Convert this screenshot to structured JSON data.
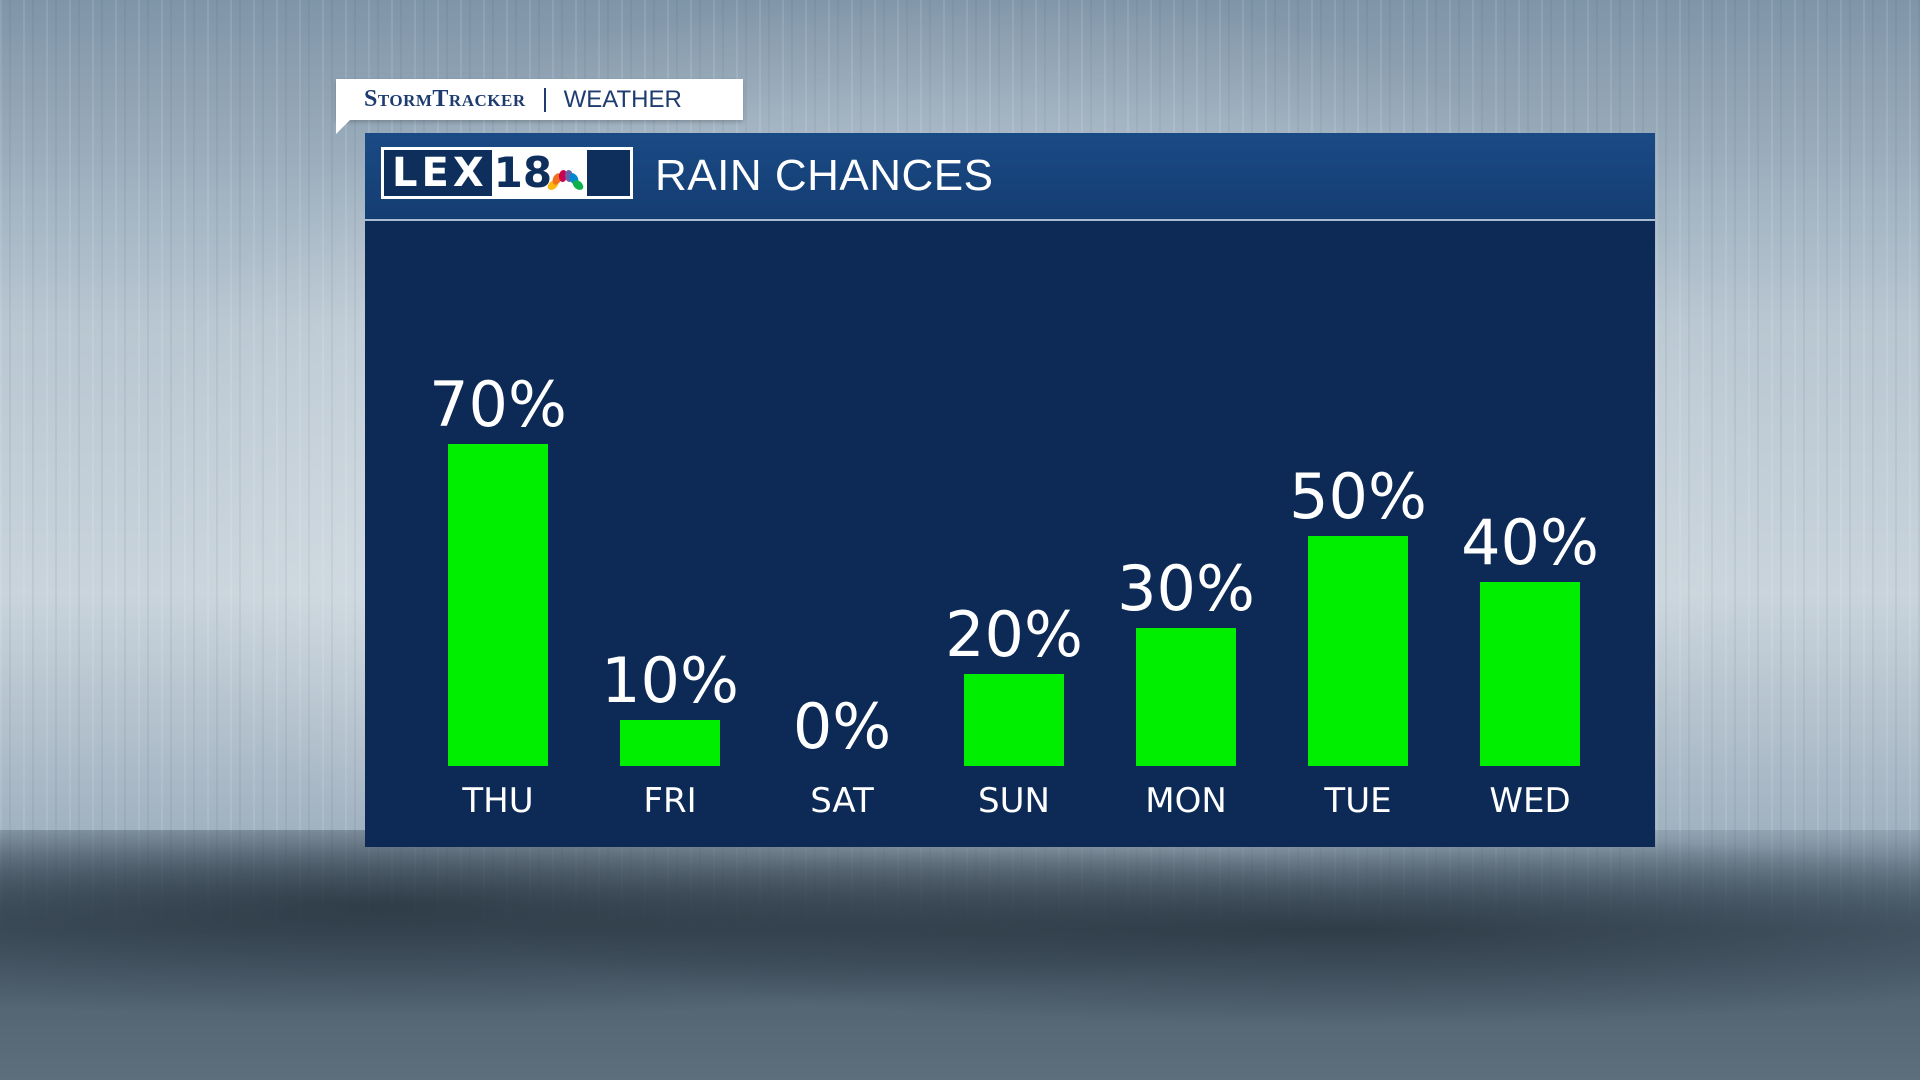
{
  "brand_tab": {
    "storm": "StormTracker",
    "weather": "WEATHER"
  },
  "logo": {
    "letters": "LEX",
    "number": "18"
  },
  "panel": {
    "title": "RAIN CHANCES"
  },
  "colors": {
    "bar": "#00ee00",
    "panel": "#0c2a55",
    "header": "#1a4a85",
    "text": "#ffffff"
  },
  "chart_data": {
    "type": "bar",
    "title": "RAIN CHANCES",
    "categories": [
      "THU",
      "FRI",
      "SAT",
      "SUN",
      "MON",
      "TUE",
      "WED"
    ],
    "values": [
      70,
      10,
      0,
      20,
      30,
      50,
      40
    ],
    "value_labels": [
      "70%",
      "10%",
      "0%",
      "20%",
      "30%",
      "50%",
      "40%"
    ],
    "ylim": [
      0,
      100
    ],
    "grid": false,
    "legend": "none"
  }
}
